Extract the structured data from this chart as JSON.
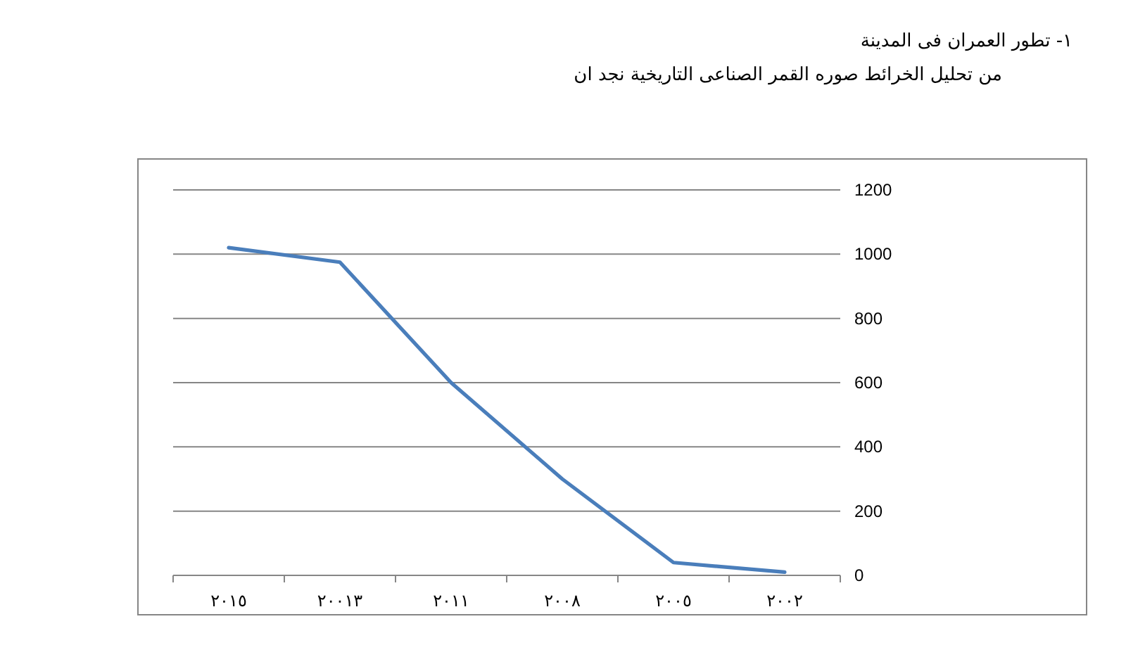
{
  "chart_data": {
    "type": "line",
    "title": "١- تطور العمران فى المدينة",
    "subtitle": "من تحليل الخرائط صوره القمر الصناعى التاريخية نجد ان",
    "categories": [
      "٢٠١٥",
      "٢٠٠١٣",
      "٢٠١١",
      "٢٠٠٨",
      "٢٠٠٥",
      "٢٠٠٢"
    ],
    "values": [
      1020,
      975,
      600,
      300,
      40,
      10
    ],
    "color": "#4a7ebb",
    "marker": "none",
    "ylim": [
      0,
      1200
    ],
    "yticks": [
      0,
      200,
      400,
      600,
      800,
      1000,
      1200
    ],
    "grid": "y"
  }
}
